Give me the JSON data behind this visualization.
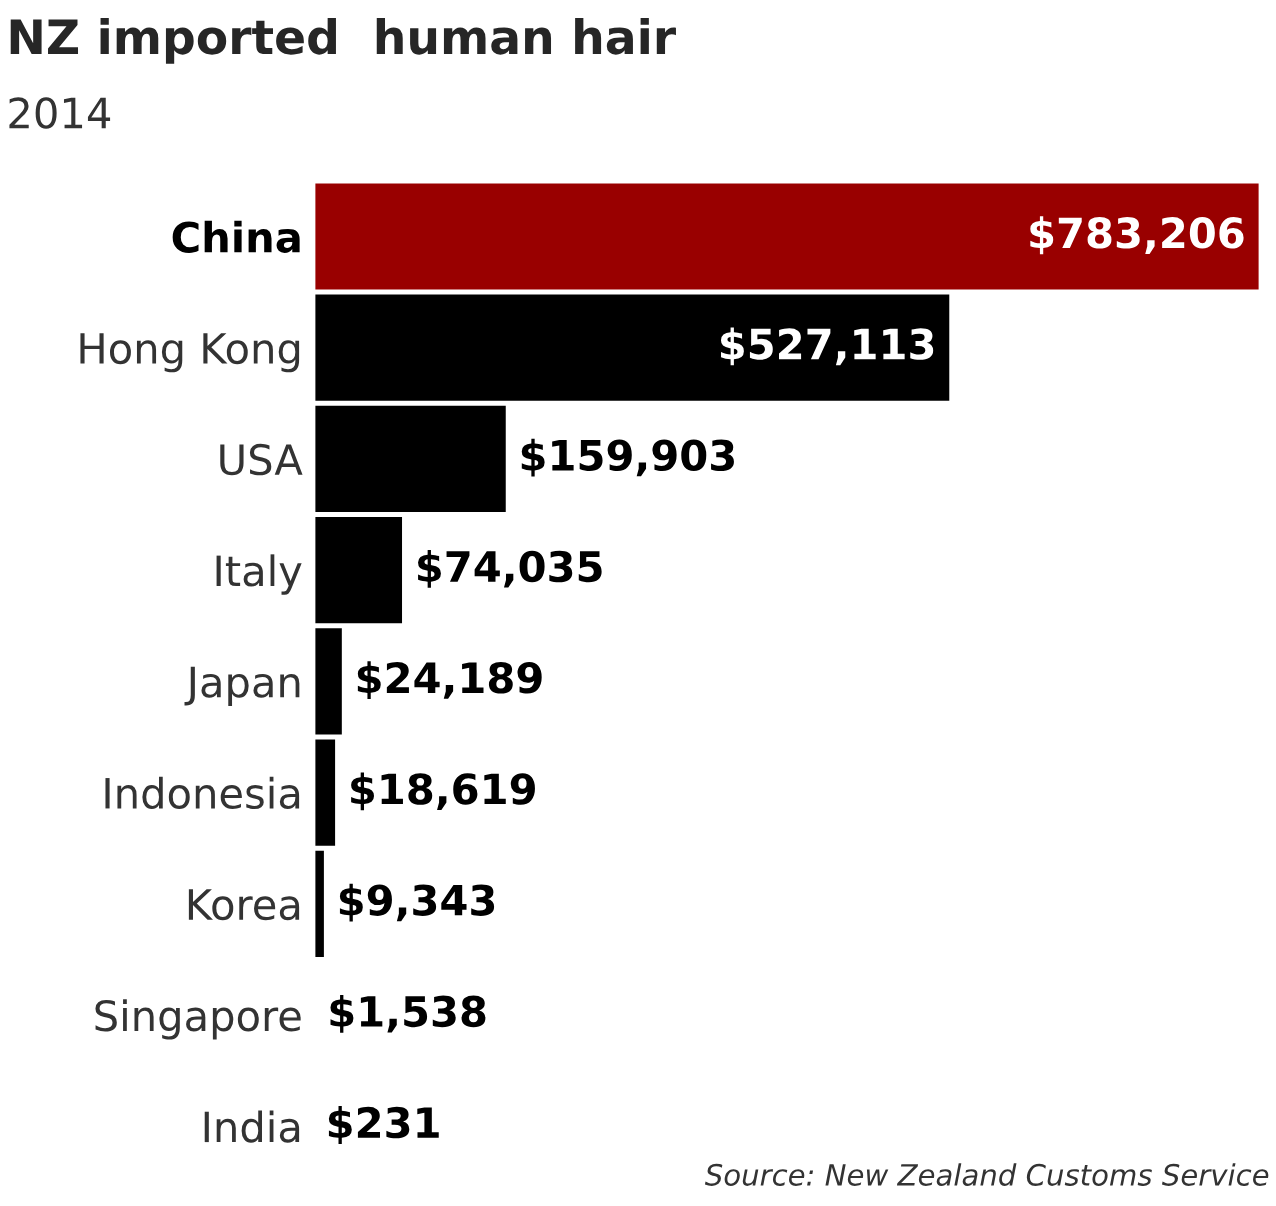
{
  "chart_data": {
    "type": "bar",
    "orientation": "horizontal",
    "title": "NZ imported  human hair",
    "subtitle": "2014",
    "categories": [
      "China",
      "Hong Kong",
      "USA",
      "Italy",
      "Japan",
      "Indonesia",
      "Korea",
      "Singapore",
      "India"
    ],
    "values": [
      783206,
      527113,
      159903,
      74035,
      24189,
      18619,
      9343,
      1538,
      231
    ],
    "value_labels": [
      "$783,206",
      "$527,113",
      "$159,903",
      "$74,035",
      "$24,189",
      "$18,619",
      "$9,343",
      "$1,538",
      "$231"
    ],
    "colors": [
      "#990000",
      "#000000",
      "#000000",
      "#000000",
      "#000000",
      "#000000",
      "#000000",
      "#000000",
      "#000000"
    ],
    "annotations": [
      "Source: New Zealand Customs Service"
    ]
  }
}
